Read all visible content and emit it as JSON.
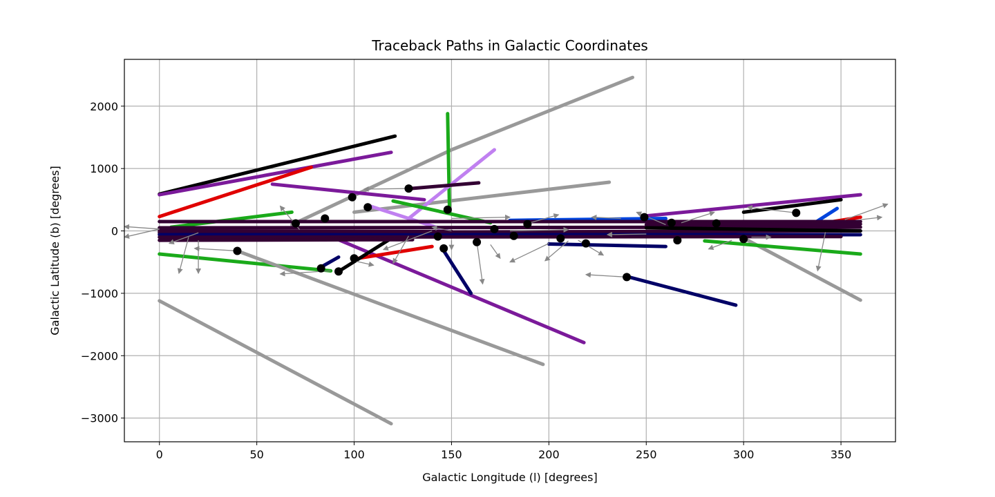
{
  "chart_data": {
    "type": "line",
    "title": "Traceback Paths in Galactic Coordinates",
    "xlabel": "Galactic Longitude (l) [degrees]",
    "ylabel": "Galactic Latitude (b) [degrees]",
    "xlim": [
      -18,
      378
    ],
    "ylim": [
      -3380,
      2750
    ],
    "xticks": [
      0,
      50,
      100,
      150,
      200,
      250,
      300,
      350
    ],
    "yticks": [
      -3000,
      -2000,
      -1000,
      0,
      1000,
      2000
    ],
    "xtick_labels": [
      "0",
      "50",
      "100",
      "150",
      "200",
      "250",
      "300",
      "350"
    ],
    "ytick_labels": [
      "−3000",
      "−2000",
      "−1000",
      "0",
      "1000",
      "2000"
    ],
    "grid": true,
    "colors": {
      "black": "#000000",
      "purple": "#7b1a9a",
      "red": "#e00000",
      "green": "#1aaa1a",
      "gray": "#999999",
      "navy": "#000066",
      "darkpurple": "#330033",
      "blue": "#0044dd",
      "lavender": "#c080f0",
      "arrow": "#888888"
    },
    "paths": [
      {
        "color": "black",
        "points": [
          [
            0,
            590
          ],
          [
            121,
            1520
          ]
        ]
      },
      {
        "color": "purple",
        "points": [
          [
            0,
            580
          ],
          [
            119,
            1260
          ]
        ]
      },
      {
        "color": "red",
        "points": [
          [
            0,
            230
          ],
          [
            78,
            1020
          ]
        ]
      },
      {
        "color": "green",
        "points": [
          [
            6,
            60
          ],
          [
            68,
            300
          ]
        ]
      },
      {
        "color": "green",
        "points": [
          [
            0,
            -370
          ],
          [
            88,
            -640
          ]
        ]
      },
      {
        "color": "gray",
        "points": [
          [
            0,
            -1120
          ],
          [
            119,
            -3090
          ]
        ]
      },
      {
        "color": "gray",
        "points": [
          [
            40,
            -320
          ],
          [
            197,
            -2140
          ]
        ]
      },
      {
        "color": "gray",
        "points": [
          [
            68,
            100
          ],
          [
            150,
            1300
          ],
          [
            243,
            2460
          ]
        ]
      },
      {
        "color": "gray",
        "points": [
          [
            100,
            300
          ],
          [
            231,
            780
          ]
        ]
      },
      {
        "color": "gray",
        "points": [
          [
            290,
            50
          ],
          [
            360,
            -1110
          ]
        ]
      },
      {
        "color": "green",
        "points": [
          [
            148,
            1880
          ],
          [
            149,
            300
          ]
        ]
      },
      {
        "color": "lavender",
        "points": [
          [
            128,
            200
          ],
          [
            172,
            1300
          ]
        ]
      },
      {
        "color": "lavender",
        "points": [
          [
            108,
            400
          ],
          [
            148,
            0
          ]
        ]
      },
      {
        "color": "purple",
        "points": [
          [
            58,
            750
          ],
          [
            136,
            500
          ]
        ]
      },
      {
        "color": "purple",
        "points": [
          [
            85,
            -50
          ],
          [
            218,
            -1790
          ]
        ]
      },
      {
        "color": "purple",
        "points": [
          [
            250,
            240
          ],
          [
            360,
            580
          ]
        ]
      },
      {
        "color": "navy",
        "points": [
          [
            145,
            -270
          ],
          [
            160,
            -1000
          ]
        ]
      },
      {
        "color": "navy",
        "points": [
          [
            83,
            -580
          ],
          [
            92,
            -420
          ]
        ]
      },
      {
        "color": "navy",
        "points": [
          [
            240,
            -730
          ],
          [
            296,
            -1190
          ]
        ]
      },
      {
        "color": "navy",
        "points": [
          [
            200,
            -210
          ],
          [
            260,
            -250
          ]
        ]
      },
      {
        "color": "darkpurple",
        "points": [
          [
            129,
            680
          ],
          [
            164,
            770
          ]
        ]
      },
      {
        "color": "green",
        "points": [
          [
            120,
            480
          ],
          [
            170,
            130
          ]
        ]
      },
      {
        "color": "green",
        "points": [
          [
            280,
            -160
          ],
          [
            360,
            -370
          ]
        ]
      },
      {
        "color": "red",
        "points": [
          [
            100,
            -450
          ],
          [
            140,
            -250
          ]
        ]
      },
      {
        "color": "red",
        "points": [
          [
            320,
            20
          ],
          [
            360,
            220
          ]
        ]
      },
      {
        "color": "black",
        "points": [
          [
            92,
            -650
          ],
          [
            120,
            -100
          ]
        ]
      },
      {
        "color": "black",
        "points": [
          [
            300,
            300
          ],
          [
            350,
            500
          ]
        ]
      },
      {
        "color": "blue",
        "points": [
          [
            180,
            170
          ],
          [
            260,
            200
          ]
        ]
      },
      {
        "color": "blue",
        "points": [
          [
            335,
            100
          ],
          [
            348,
            360
          ]
        ]
      },
      {
        "color": "darkpurple",
        "points": [
          [
            0,
            150
          ],
          [
            360,
            150
          ]
        ]
      },
      {
        "color": "darkpurple",
        "points": [
          [
            0,
            50
          ],
          [
            360,
            60
          ]
        ]
      },
      {
        "color": "darkpurple",
        "points": [
          [
            0,
            -30
          ],
          [
            360,
            0
          ]
        ]
      },
      {
        "color": "navy",
        "points": [
          [
            0,
            -60
          ],
          [
            360,
            -60
          ]
        ]
      },
      {
        "color": "darkpurple",
        "points": [
          [
            0,
            -100
          ],
          [
            350,
            -90
          ]
        ]
      },
      {
        "color": "darkpurple",
        "points": [
          [
            0,
            -150
          ],
          [
            130,
            -140
          ]
        ]
      },
      {
        "color": "darkpurple",
        "points": [
          [
            250,
            100
          ],
          [
            360,
            110
          ]
        ]
      },
      {
        "color": "black",
        "points": [
          [
            250,
            50
          ],
          [
            360,
            0
          ]
        ]
      },
      {
        "color": "darkpurple",
        "points": [
          [
            0,
            0
          ],
          [
            150,
            -10
          ]
        ]
      }
    ],
    "start_points": [
      [
        40,
        -320
      ],
      [
        92,
        -650
      ],
      [
        83,
        -600
      ],
      [
        100,
        -440
      ],
      [
        146,
        -280
      ],
      [
        85,
        200
      ],
      [
        99,
        540
      ],
      [
        107,
        380
      ],
      [
        128,
        680
      ],
      [
        148,
        340
      ],
      [
        163,
        -180
      ],
      [
        182,
        -80
      ],
      [
        189,
        110
      ],
      [
        206,
        -120
      ],
      [
        219,
        -200
      ],
      [
        240,
        -740
      ],
      [
        249,
        220
      ],
      [
        263,
        130
      ],
      [
        266,
        -150
      ],
      [
        286,
        120
      ],
      [
        300,
        -130
      ],
      [
        327,
        290
      ],
      [
        70,
        120
      ],
      [
        143,
        -90
      ],
      [
        172,
        30
      ]
    ],
    "arrows": [
      [
        [
          0,
          30
        ],
        [
          -18,
          70
        ]
      ],
      [
        [
          0,
          30
        ],
        [
          -18,
          -100
        ]
      ],
      [
        [
          15,
          -100
        ],
        [
          10,
          -680
        ]
      ],
      [
        [
          20,
          -150
        ],
        [
          20,
          -680
        ]
      ],
      [
        [
          40,
          -320
        ],
        [
          18,
          -280
        ]
      ],
      [
        [
          72,
          20
        ],
        [
          62,
          400
        ]
      ],
      [
        [
          88,
          -640
        ],
        [
          62,
          -690
        ]
      ],
      [
        [
          129,
          680
        ],
        [
          105,
          670
        ]
      ],
      [
        [
          150,
          0
        ],
        [
          140,
          60
        ]
      ],
      [
        [
          150,
          -150
        ],
        [
          150,
          -300
        ]
      ],
      [
        [
          163,
          -180
        ],
        [
          166,
          -850
        ]
      ],
      [
        [
          170,
          -220
        ],
        [
          175,
          -440
        ]
      ],
      [
        [
          240,
          -740
        ],
        [
          219,
          -700
        ]
      ],
      [
        [
          188,
          110
        ],
        [
          205,
          260
        ]
      ],
      [
        [
          200,
          -200
        ],
        [
          180,
          -500
        ]
      ],
      [
        [
          210,
          -160
        ],
        [
          198,
          -480
        ]
      ],
      [
        [
          215,
          -150
        ],
        [
          228,
          -390
        ]
      ],
      [
        [
          237,
          200
        ],
        [
          222,
          220
        ]
      ],
      [
        [
          260,
          100
        ],
        [
          245,
          300
        ]
      ],
      [
        [
          268,
          130
        ],
        [
          285,
          300
        ]
      ],
      [
        [
          294,
          -150
        ],
        [
          282,
          -290
        ]
      ],
      [
        [
          304,
          -100
        ],
        [
          314,
          -100
        ]
      ],
      [
        [
          327,
          290
        ],
        [
          302,
          380
        ]
      ],
      [
        [
          342,
          -20
        ],
        [
          338,
          -640
        ]
      ],
      [
        [
          352,
          180
        ],
        [
          374,
          430
        ]
      ],
      [
        [
          360,
          180
        ],
        [
          371,
          220
        ]
      ],
      [
        [
          128,
          -80
        ],
        [
          120,
          -520
        ]
      ],
      [
        [
          140,
          0
        ],
        [
          115,
          -300
        ]
      ],
      [
        [
          100,
          -480
        ],
        [
          110,
          -550
        ]
      ],
      [
        [
          180,
          0
        ],
        [
          210,
          20
        ]
      ],
      [
        [
          150,
          200
        ],
        [
          180,
          220
        ]
      ],
      [
        [
          250,
          -50
        ],
        [
          230,
          -60
        ]
      ],
      [
        [
          20,
          -30
        ],
        [
          5,
          -200
        ]
      ]
    ]
  }
}
